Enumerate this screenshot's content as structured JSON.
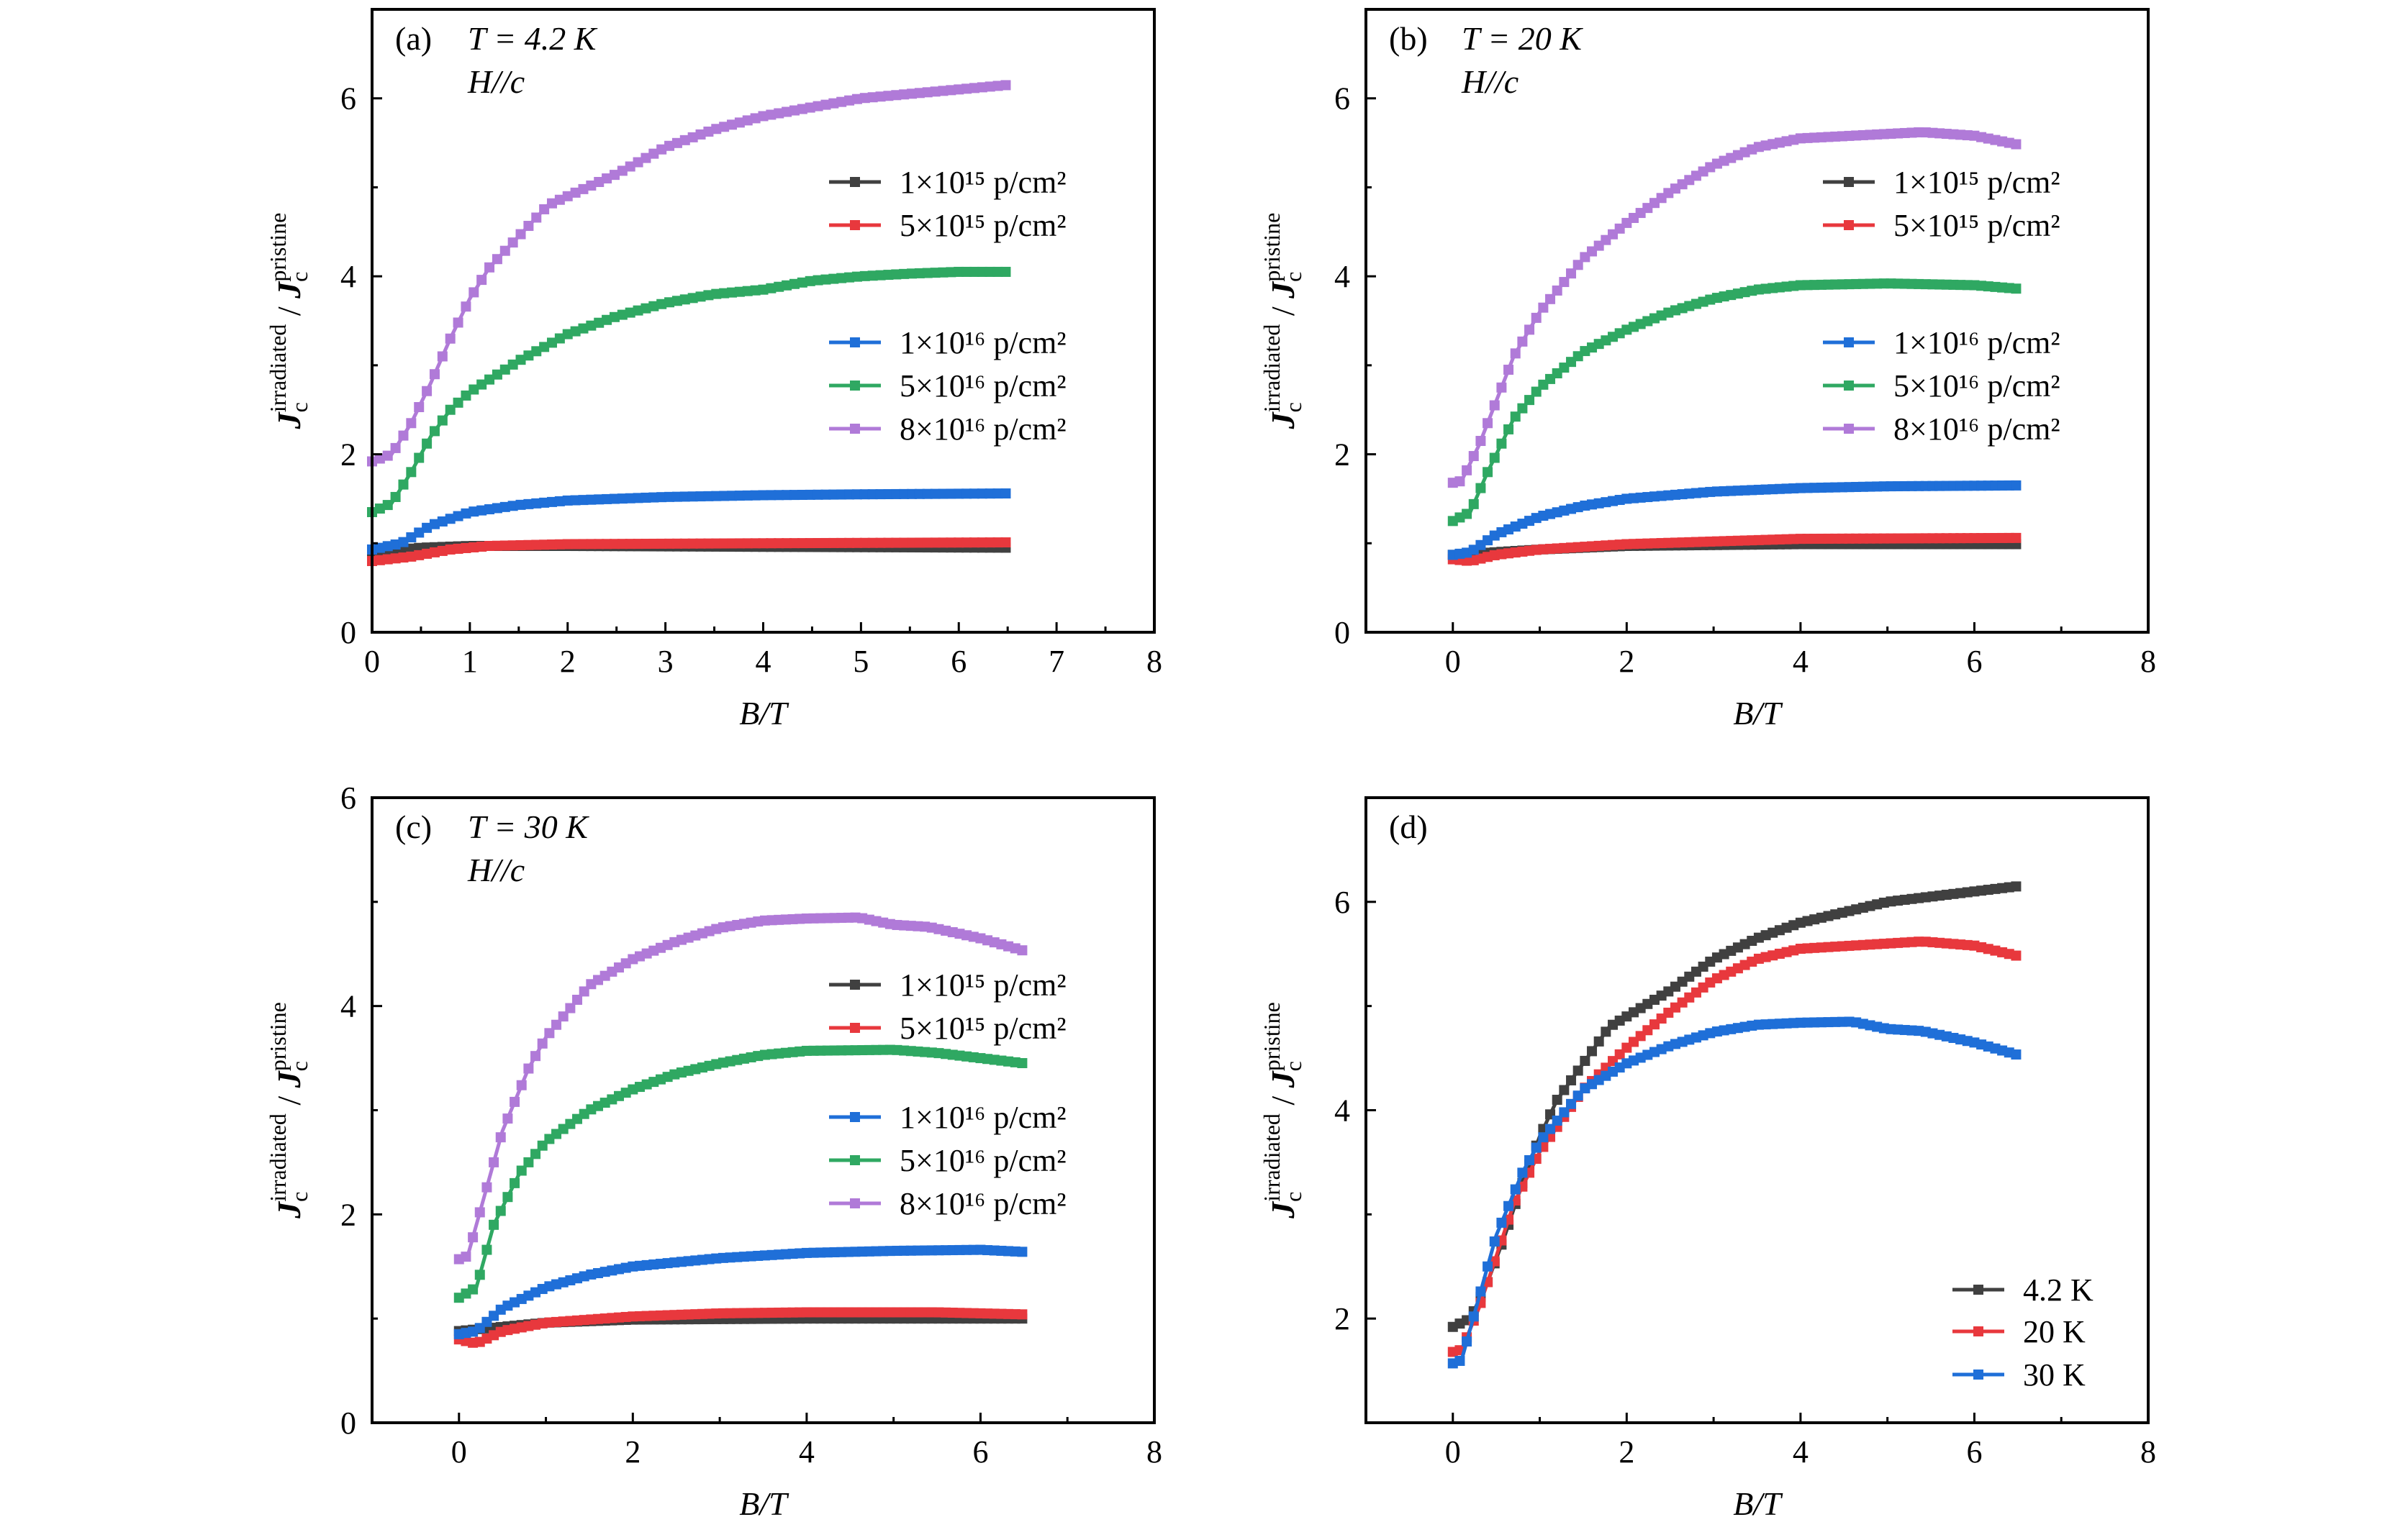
{
  "colors": {
    "black": "#404040",
    "red": "#e8383d",
    "blue": "#1f6fd8",
    "green": "#2fa862",
    "purple": "#b07ad8"
  },
  "chart_data": [
    {
      "type": "line",
      "panel_label": "(a)",
      "temperature": "T = 4.2 K",
      "field": "H//c",
      "xlabel": "B/T",
      "ylabel": {
        "symbol": "J",
        "sub": "c",
        "sup_num": "irradiated",
        "sep": " / ",
        "sup_den": "pristine"
      },
      "xlim": [
        0,
        8
      ],
      "ylim": [
        0,
        7
      ],
      "xticks": [
        0,
        1,
        2,
        3,
        4,
        5,
        6,
        7,
        8
      ],
      "yticks": [
        0,
        2,
        4,
        6
      ],
      "grid": false,
      "legend_placement": "right",
      "series": [
        {
          "name": "1×10¹⁵ p/cm²",
          "color": "black",
          "x": [
            0,
            0.5,
            1,
            2,
            4,
            6.5
          ],
          "y": [
            0.9,
            0.95,
            0.97,
            0.97,
            0.96,
            0.95
          ]
        },
        {
          "name": "5×10¹⁵ p/cm²",
          "color": "red",
          "x": [
            0,
            0.4,
            0.8,
            1.2,
            2,
            4,
            6.5
          ],
          "y": [
            0.8,
            0.85,
            0.93,
            0.97,
            0.99,
            1.0,
            1.01
          ]
        },
        {
          "name": "1×10¹⁶ p/cm²",
          "color": "blue",
          "x": [
            0,
            0.3,
            0.6,
            1,
            1.5,
            2,
            3,
            4,
            5,
            6.5
          ],
          "y": [
            0.93,
            1.0,
            1.2,
            1.35,
            1.43,
            1.48,
            1.52,
            1.54,
            1.55,
            1.56
          ]
        },
        {
          "name": "5×10¹⁶ p/cm²",
          "color": "green",
          "x": [
            0,
            0.2,
            0.4,
            0.6,
            0.8,
            1,
            1.5,
            2,
            2.5,
            3,
            3.5,
            4,
            4.5,
            5,
            5.5,
            6,
            6.5
          ],
          "y": [
            1.35,
            1.45,
            1.8,
            2.2,
            2.5,
            2.7,
            3.05,
            3.35,
            3.55,
            3.7,
            3.8,
            3.85,
            3.95,
            4.0,
            4.03,
            4.05,
            4.05
          ]
        },
        {
          "name": "8×10¹⁶ p/cm²",
          "color": "purple",
          "x": [
            0,
            0.2,
            0.4,
            0.6,
            0.8,
            1,
            1.2,
            1.5,
            1.8,
            2,
            2.5,
            3,
            3.5,
            4,
            4.5,
            5,
            5.5,
            6,
            6.5
          ],
          "y": [
            1.92,
            2.0,
            2.35,
            2.8,
            3.3,
            3.75,
            4.1,
            4.45,
            4.8,
            4.9,
            5.15,
            5.45,
            5.65,
            5.8,
            5.9,
            6.0,
            6.05,
            6.1,
            6.15
          ]
        }
      ]
    },
    {
      "type": "line",
      "panel_label": "(b)",
      "temperature": "T = 20 K",
      "field": "H//c",
      "xlabel": "B/T",
      "ylabel": {
        "symbol": "J",
        "sub": "c",
        "sup_num": "irradiated",
        "sep": " / ",
        "sup_den": "pristine"
      },
      "xlim": [
        -1,
        8
      ],
      "ylim": [
        0,
        7
      ],
      "xticks": [
        0,
        2,
        4,
        6,
        8
      ],
      "yticks": [
        0,
        2,
        4,
        6
      ],
      "grid": false,
      "legend_placement": "right",
      "series": [
        {
          "name": "1×10¹⁵ p/cm²",
          "color": "black",
          "x": [
            0,
            0.5,
            1,
            2,
            4,
            6.5
          ],
          "y": [
            0.87,
            0.9,
            0.93,
            0.97,
            0.99,
            0.99
          ]
        },
        {
          "name": "5×10¹⁵ p/cm²",
          "color": "red",
          "x": [
            0,
            0.2,
            0.5,
            1,
            2,
            3,
            4,
            6.5
          ],
          "y": [
            0.82,
            0.8,
            0.87,
            0.93,
            0.99,
            1.02,
            1.05,
            1.06
          ]
        },
        {
          "name": "1×10¹⁶ p/cm²",
          "color": "blue",
          "x": [
            0,
            0.2,
            0.5,
            1,
            1.5,
            2,
            3,
            4,
            5,
            6.5
          ],
          "y": [
            0.87,
            0.9,
            1.1,
            1.3,
            1.42,
            1.5,
            1.58,
            1.62,
            1.64,
            1.65
          ]
        },
        {
          "name": "5×10¹⁶ p/cm²",
          "color": "green",
          "x": [
            0,
            0.2,
            0.4,
            0.7,
            1,
            1.5,
            2,
            2.5,
            3,
            3.5,
            4,
            5,
            6,
            6.5
          ],
          "y": [
            1.25,
            1.35,
            1.8,
            2.4,
            2.75,
            3.15,
            3.4,
            3.6,
            3.75,
            3.85,
            3.9,
            3.92,
            3.9,
            3.86
          ]
        },
        {
          "name": "8×10¹⁶ p/cm²",
          "color": "purple",
          "x": [
            0,
            0.1,
            0.3,
            0.5,
            0.7,
            1,
            1.5,
            2,
            2.5,
            3,
            3.5,
            4,
            5,
            5.4,
            6,
            6.5
          ],
          "y": [
            1.68,
            1.7,
            2.1,
            2.6,
            3.1,
            3.6,
            4.2,
            4.6,
            4.95,
            5.25,
            5.45,
            5.55,
            5.6,
            5.62,
            5.58,
            5.48
          ]
        }
      ]
    },
    {
      "type": "line",
      "panel_label": "(c)",
      "temperature": "T = 30 K",
      "field": "H//c",
      "xlabel": "B/T",
      "ylabel": {
        "symbol": "J",
        "sub": "c",
        "sup_num": "irradiated",
        "sep": " / ",
        "sup_den": "pristine"
      },
      "xlim": [
        -1,
        8
      ],
      "ylim": [
        0,
        6
      ],
      "xticks": [
        0,
        2,
        4,
        6,
        8
      ],
      "yticks": [
        0,
        2,
        4,
        6
      ],
      "grid": false,
      "legend_placement": "right",
      "series": [
        {
          "name": "1×10¹⁵ p/cm²",
          "color": "black",
          "x": [
            0,
            0.5,
            1,
            2,
            4,
            6.5
          ],
          "y": [
            0.88,
            0.92,
            0.96,
            0.99,
            1.0,
            1.0
          ]
        },
        {
          "name": "5×10¹⁵ p/cm²",
          "color": "red",
          "x": [
            0,
            0.2,
            0.5,
            1,
            2,
            3,
            4,
            5.5,
            6.5
          ],
          "y": [
            0.8,
            0.76,
            0.88,
            0.96,
            1.02,
            1.05,
            1.06,
            1.06,
            1.04
          ]
        },
        {
          "name": "1×10¹⁶ p/cm²",
          "color": "blue",
          "x": [
            0,
            0.2,
            0.5,
            1,
            1.5,
            2,
            3,
            4,
            5,
            6,
            6.5
          ],
          "y": [
            0.85,
            0.88,
            1.1,
            1.3,
            1.42,
            1.5,
            1.58,
            1.63,
            1.65,
            1.66,
            1.64
          ]
        },
        {
          "name": "5×10¹⁶ p/cm²",
          "color": "green",
          "x": [
            0,
            0.2,
            0.4,
            0.7,
            1,
            1.5,
            2,
            2.5,
            3,
            3.5,
            4,
            5,
            5.5,
            6,
            6.5
          ],
          "y": [
            1.2,
            1.3,
            1.9,
            2.4,
            2.7,
            3.0,
            3.2,
            3.35,
            3.45,
            3.53,
            3.57,
            3.58,
            3.55,
            3.5,
            3.45
          ]
        },
        {
          "name": "8×10¹⁶ p/cm²",
          "color": "purple",
          "x": [
            0,
            0.1,
            0.3,
            0.5,
            0.8,
            1,
            1.5,
            2,
            2.5,
            3,
            3.5,
            4,
            4.6,
            5,
            5.4,
            6,
            6.5
          ],
          "y": [
            1.57,
            1.6,
            2.2,
            2.8,
            3.4,
            3.7,
            4.2,
            4.45,
            4.62,
            4.75,
            4.82,
            4.84,
            4.85,
            4.78,
            4.76,
            4.65,
            4.53
          ]
        }
      ]
    },
    {
      "type": "line",
      "panel_label": "(d)",
      "temperature": "",
      "field": "",
      "xlabel": "B/T",
      "ylabel": {
        "symbol": "J",
        "sub": "c",
        "sup_num": "irradiated",
        "sep": " / ",
        "sup_den": "pristine"
      },
      "xlim": [
        -1,
        8
      ],
      "ylim": [
        1,
        7
      ],
      "xticks": [
        0,
        2,
        4,
        6,
        8
      ],
      "yticks": [
        2,
        4,
        6
      ],
      "grid": false,
      "legend_placement": "bottom-right",
      "series": [
        {
          "name": "4.2 K",
          "color": "black",
          "x": [
            0,
            0.2,
            0.4,
            0.6,
            0.8,
            1,
            1.2,
            1.5,
            1.8,
            2,
            2.5,
            3,
            3.5,
            4,
            4.5,
            5,
            5.5,
            6,
            6.5
          ],
          "y": [
            1.92,
            2.0,
            2.35,
            2.8,
            3.3,
            3.75,
            4.1,
            4.45,
            4.8,
            4.9,
            5.15,
            5.45,
            5.65,
            5.8,
            5.9,
            6.0,
            6.05,
            6.1,
            6.15
          ]
        },
        {
          "name": "20 K",
          "color": "red",
          "x": [
            0,
            0.1,
            0.3,
            0.5,
            0.7,
            1,
            1.5,
            2,
            2.5,
            3,
            3.5,
            4,
            5,
            5.4,
            6,
            6.5
          ],
          "y": [
            1.68,
            1.7,
            2.1,
            2.6,
            3.1,
            3.6,
            4.2,
            4.6,
            4.95,
            5.25,
            5.45,
            5.55,
            5.6,
            5.62,
            5.58,
            5.48
          ]
        },
        {
          "name": "30 K",
          "color": "blue",
          "x": [
            0,
            0.1,
            0.3,
            0.5,
            0.8,
            1,
            1.5,
            2,
            2.5,
            3,
            3.5,
            4,
            4.6,
            5,
            5.4,
            6,
            6.5
          ],
          "y": [
            1.57,
            1.6,
            2.2,
            2.8,
            3.4,
            3.7,
            4.2,
            4.45,
            4.62,
            4.75,
            4.82,
            4.84,
            4.85,
            4.78,
            4.76,
            4.65,
            4.53
          ]
        }
      ]
    }
  ]
}
